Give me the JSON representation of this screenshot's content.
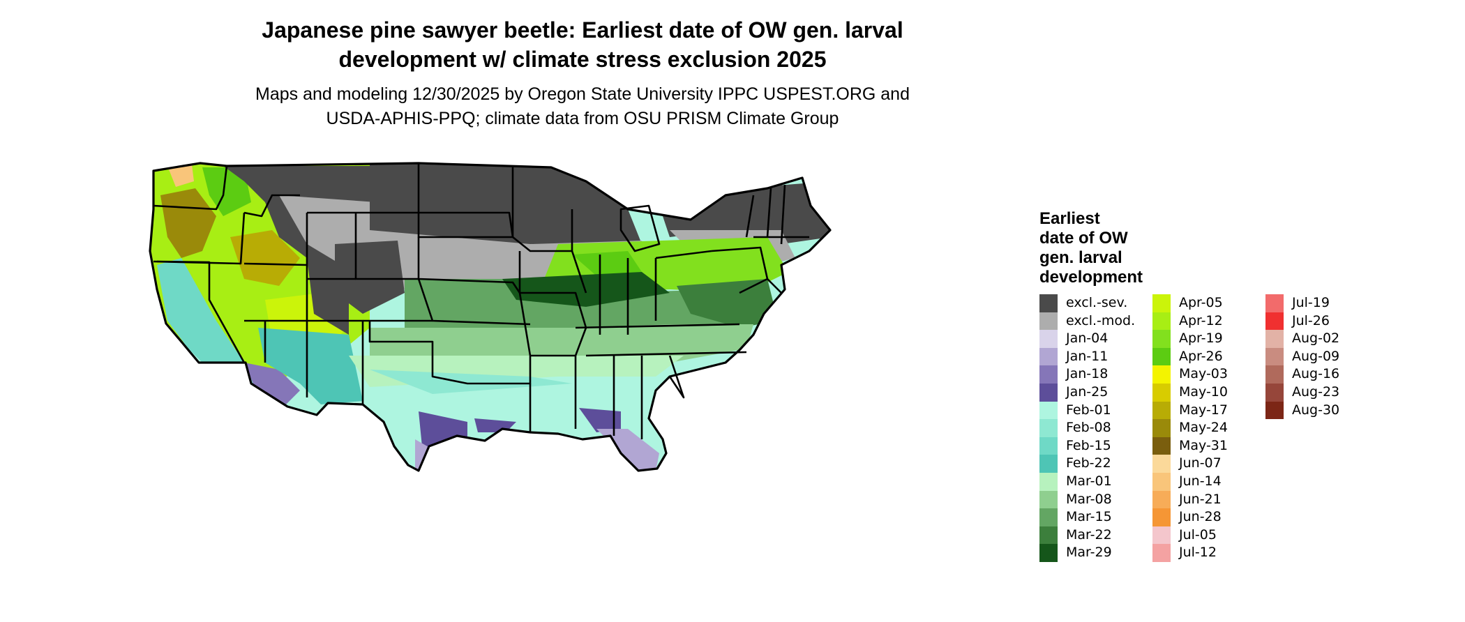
{
  "title_lines": [
    "Japanese pine sawyer beetle: Earliest date of OW gen. larval",
    "development w/ climate stress exclusion 2025"
  ],
  "subtitle_lines": [
    "Maps and modeling 12/30/2025 by Oregon State University IPPC USPEST.ORG and",
    "USDA-APHIS-PPQ; climate data from OSU PRISM Climate Group"
  ],
  "legend": {
    "title_lines": [
      "Earliest",
      "date of OW",
      "gen. larval",
      "development"
    ],
    "columns": [
      [
        {
          "label": "excl.-sev.",
          "color": "#4a4a4a"
        },
        {
          "label": "excl.-mod.",
          "color": "#adadad"
        },
        {
          "label": "Jan-04",
          "color": "#d9d3ea"
        },
        {
          "label": "Jan-11",
          "color": "#b1a6d3"
        },
        {
          "label": "Jan-18",
          "color": "#8576b8"
        },
        {
          "label": "Jan-25",
          "color": "#5d4e9a"
        },
        {
          "label": "Feb-01",
          "color": "#aef5e0"
        },
        {
          "label": "Feb-08",
          "color": "#8ee8d2"
        },
        {
          "label": "Feb-15",
          "color": "#6fd9c6"
        },
        {
          "label": "Feb-22",
          "color": "#4ec5b5"
        },
        {
          "label": "Mar-01",
          "color": "#b7f2be"
        },
        {
          "label": "Mar-08",
          "color": "#8fcf8f"
        },
        {
          "label": "Mar-15",
          "color": "#63a663"
        },
        {
          "label": "Mar-22",
          "color": "#3c7f3c"
        },
        {
          "label": "Mar-29",
          "color": "#15561a"
        }
      ],
      [
        {
          "label": "Apr-05",
          "color": "#cbf40a"
        },
        {
          "label": "Apr-12",
          "color": "#a8ee14"
        },
        {
          "label": "Apr-19",
          "color": "#82e01e"
        },
        {
          "label": "Apr-26",
          "color": "#5ccc12"
        },
        {
          "label": "May-03",
          "color": "#f4f400"
        },
        {
          "label": "May-10",
          "color": "#d8cc00"
        },
        {
          "label": "May-17",
          "color": "#b8ac05"
        },
        {
          "label": "May-24",
          "color": "#9a8a0a"
        },
        {
          "label": "May-31",
          "color": "#7a5e0e"
        },
        {
          "label": "Jun-07",
          "color": "#fbd99a"
        },
        {
          "label": "Jun-14",
          "color": "#f9c57a"
        },
        {
          "label": "Jun-21",
          "color": "#f7ac58"
        },
        {
          "label": "Jun-28",
          "color": "#f59635"
        },
        {
          "label": "Jul-05",
          "color": "#f4c6cc"
        },
        {
          "label": "Jul-12",
          "color": "#f4a2a2"
        }
      ],
      [
        {
          "label": "Jul-19",
          "color": "#f26b6b"
        },
        {
          "label": "Jul-26",
          "color": "#f03030"
        },
        {
          "label": "Aug-02",
          "color": "#e2b2a6"
        },
        {
          "label": "Aug-09",
          "color": "#c98c80"
        },
        {
          "label": "Aug-16",
          "color": "#b06a5c"
        },
        {
          "label": "Aug-23",
          "color": "#96463a"
        },
        {
          "label": "Aug-30",
          "color": "#7c2616"
        }
      ]
    ]
  }
}
